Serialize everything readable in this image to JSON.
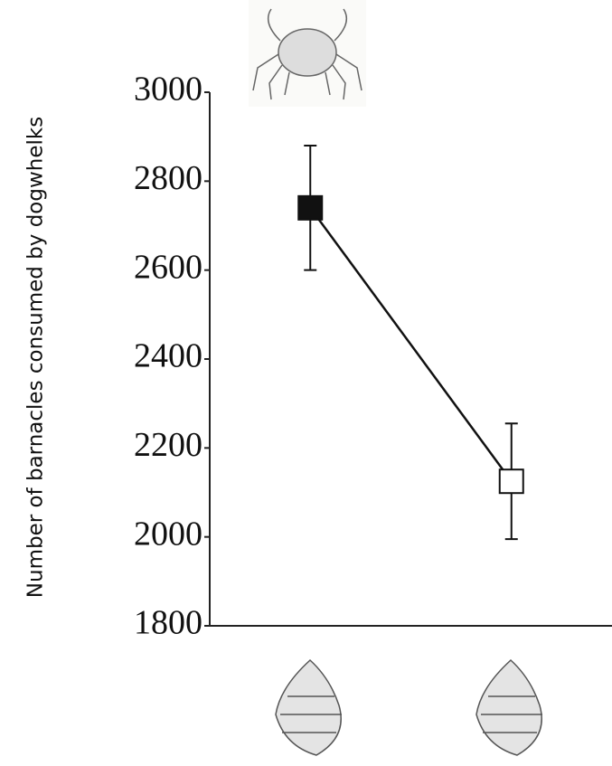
{
  "chart_data": {
    "type": "line",
    "y_label": "Number of barnacles consumed by dogwhelks",
    "categories": [
      null,
      null
    ],
    "values": [
      2740,
      2125
    ],
    "errors": [
      140,
      130
    ],
    "marker_fills": [
      "#111111",
      "#ffffff"
    ],
    "color": "#111111",
    "ylim": [
      1800,
      3000
    ],
    "yticks": [
      1800,
      2000,
      2200,
      2400,
      2600,
      2800,
      3000
    ]
  }
}
